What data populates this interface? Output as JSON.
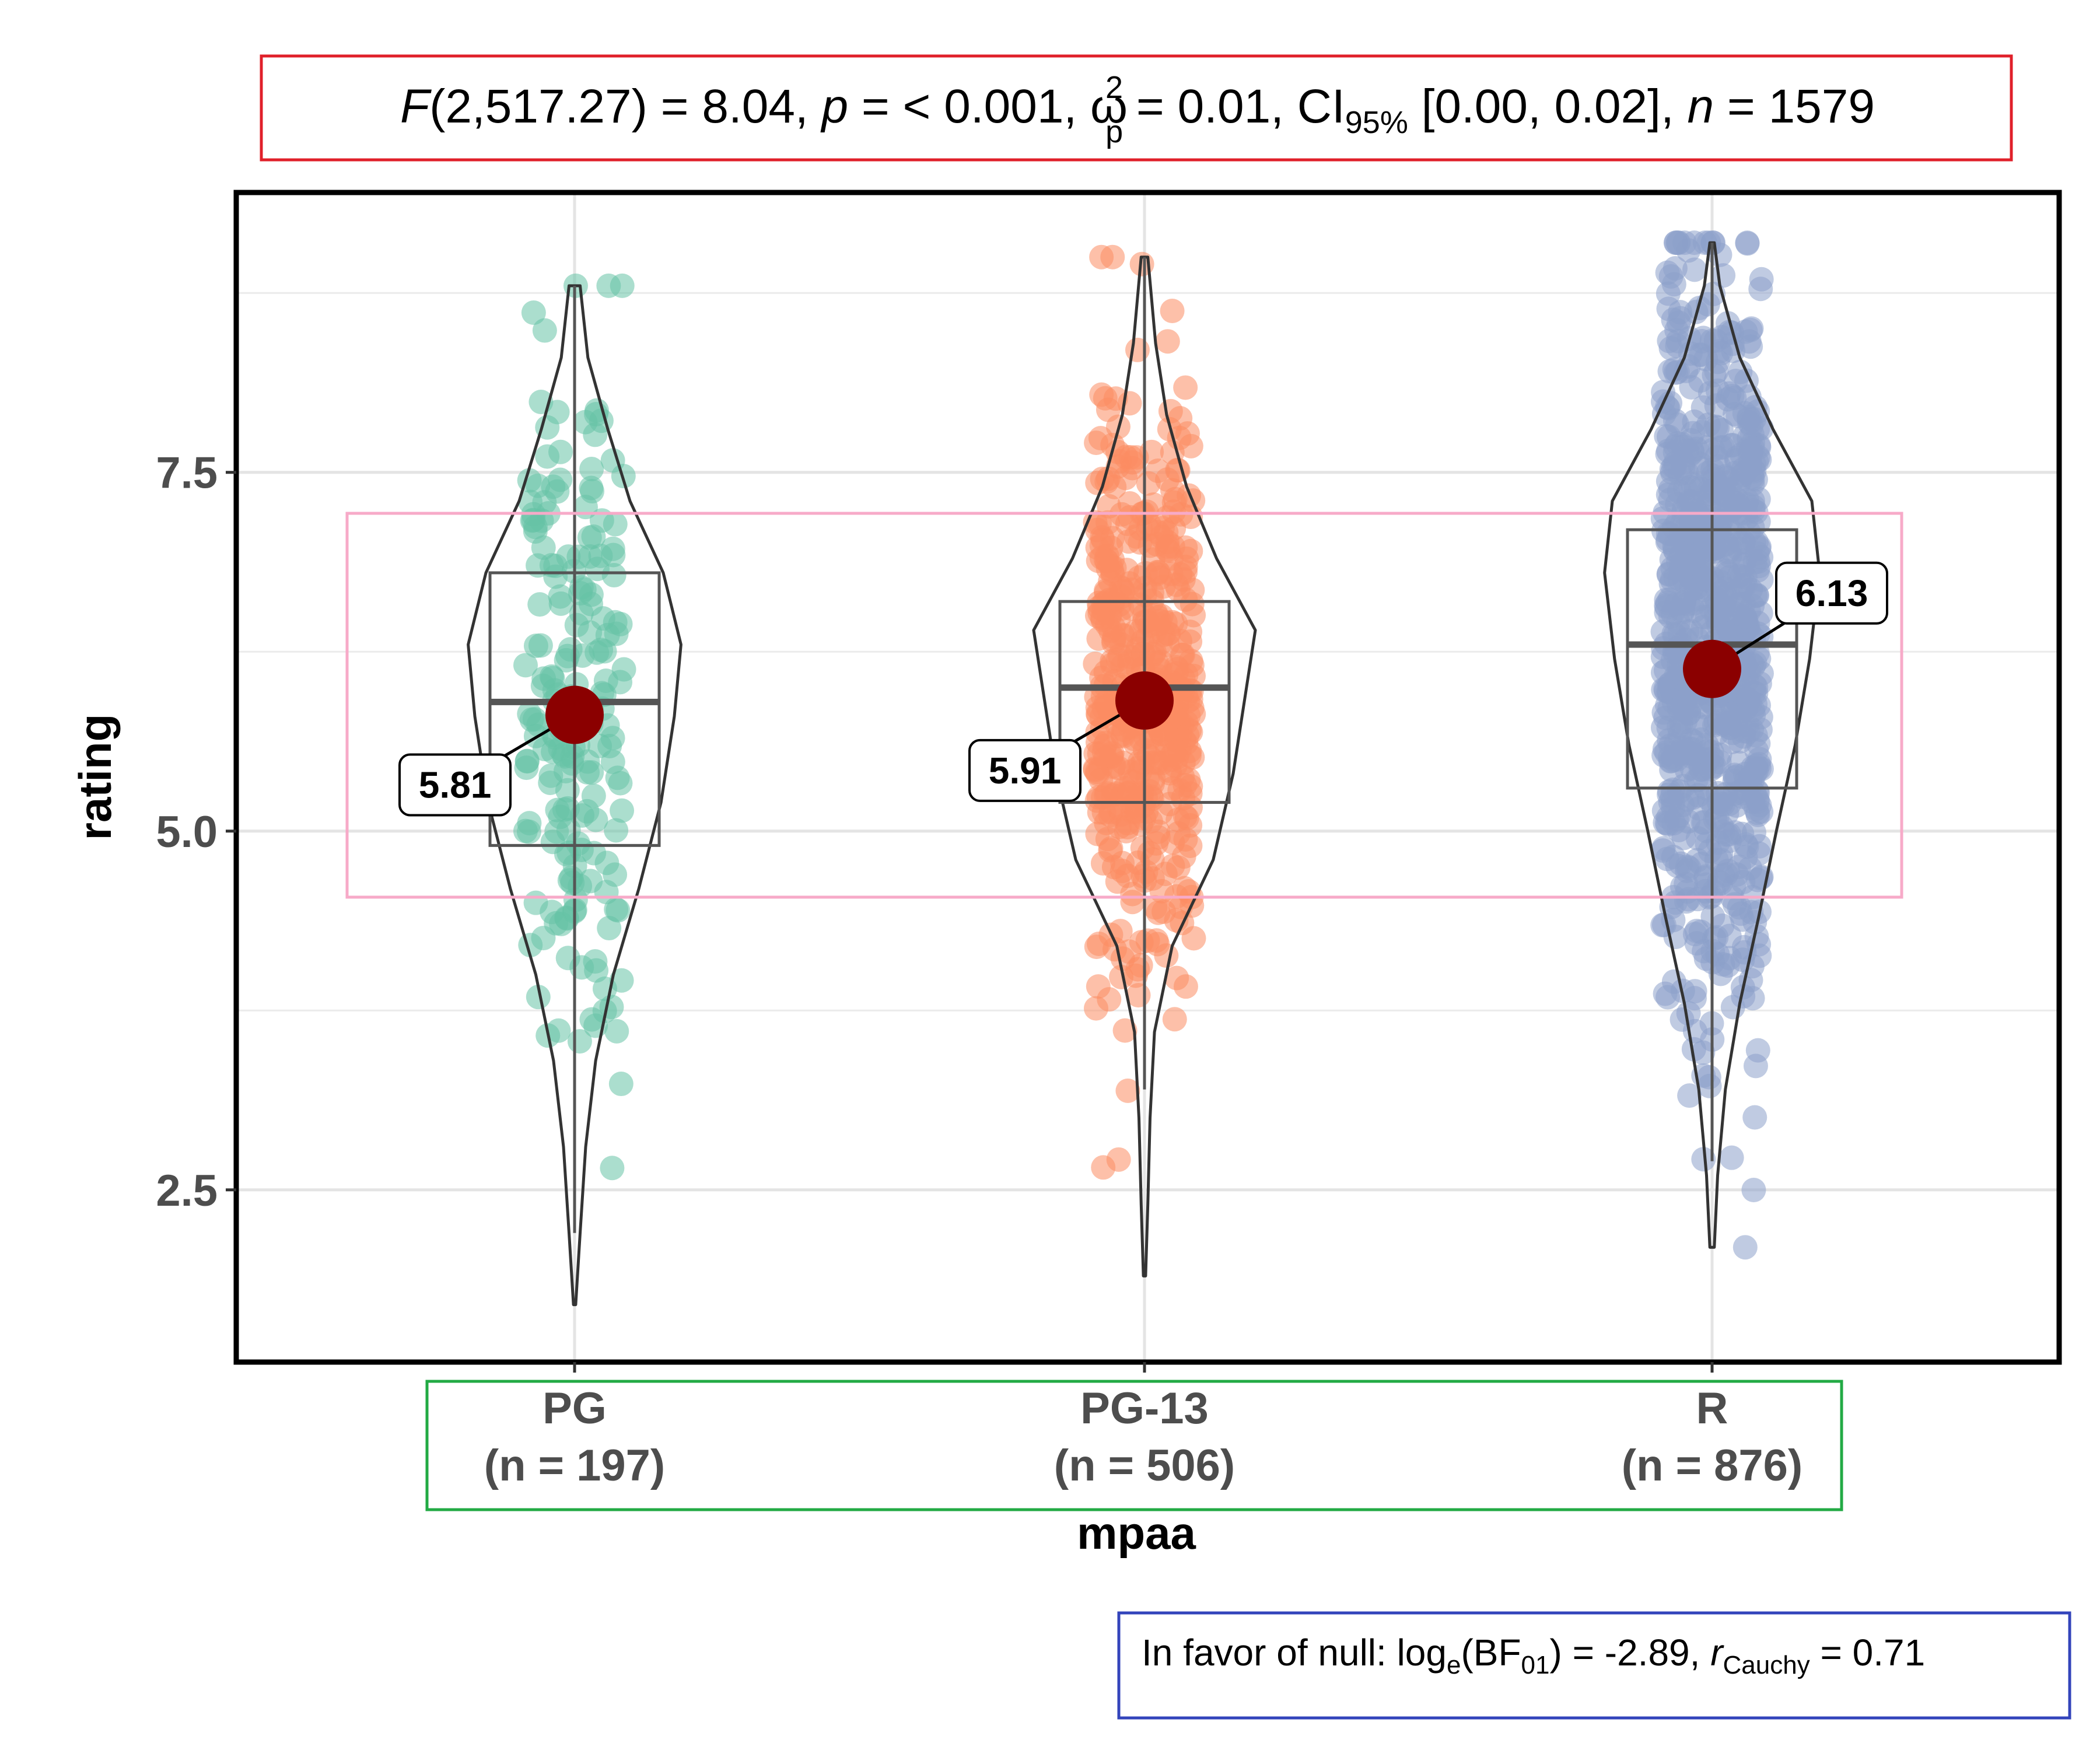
{
  "chart_data": {
    "type": "violin-box-scatter",
    "subtitle": {
      "f_letter": "F",
      "f_args": "(2,517.27) = 8.04, ",
      "p_letter": "p",
      "p_text": " = < 0.001, ",
      "omega": "ω",
      "omega_sup": "2",
      "omega_sub": "p",
      "omega_text": " = 0.01, CI",
      "ci_sub": "95%",
      "ci_text": " [0.00, 0.02], ",
      "n_letter": "n",
      "n_text": " = 1579"
    },
    "caption": {
      "prefix": "In favor of null: log",
      "log_sub": "e",
      "bf_open": "(BF",
      "bf_sub": "01",
      "bf_close": ") = -2.89, ",
      "r_letter": "r",
      "r_sub": "Cauchy",
      "r_text": " = 0.71"
    },
    "xlabel": "mpaa",
    "ylabel": "rating",
    "ylim": [
      1.3,
      9.45
    ],
    "yticks": [
      {
        "value": 2.5,
        "label": "2.5"
      },
      {
        "value": 5.0,
        "label": "5.0"
      },
      {
        "value": 7.5,
        "label": "7.5"
      }
    ],
    "minor_yticks": [
      3.75,
      6.25,
      8.75
    ],
    "grid": true,
    "groups": [
      {
        "name": "PG",
        "n_label": "(n = 197)",
        "color": "#66c2a5",
        "n_points": 197,
        "min": 1.7,
        "max": 8.8,
        "q1": 4.9,
        "median": 5.9,
        "q3": 6.8,
        "whisker_low": 2.2,
        "whisker_high": 8.8,
        "mean": 5.81,
        "mean_label": "5.81",
        "density": [
          [
            1.7,
            0.01
          ],
          [
            2.2,
            0.05
          ],
          [
            2.8,
            0.1
          ],
          [
            3.4,
            0.19
          ],
          [
            4.0,
            0.35
          ],
          [
            4.6,
            0.58
          ],
          [
            5.2,
            0.78
          ],
          [
            5.8,
            0.9
          ],
          [
            6.3,
            0.96
          ],
          [
            6.8,
            0.8
          ],
          [
            7.3,
            0.5
          ],
          [
            7.8,
            0.3
          ],
          [
            8.3,
            0.12
          ],
          [
            8.8,
            0.05
          ]
        ]
      },
      {
        "name": "PG-13",
        "n_label": "(n = 506)",
        "color": "#fc8d62",
        "n_points": 506,
        "min": 1.9,
        "max": 9.0,
        "q1": 5.2,
        "median": 6.0,
        "q3": 6.6,
        "whisker_low": 3.2,
        "whisker_high": 9.0,
        "mean": 5.91,
        "mean_label": "5.91",
        "density": [
          [
            1.9,
            0.01
          ],
          [
            2.4,
            0.03
          ],
          [
            3.0,
            0.05
          ],
          [
            3.6,
            0.09
          ],
          [
            4.2,
            0.25
          ],
          [
            4.8,
            0.62
          ],
          [
            5.4,
            0.8
          ],
          [
            6.0,
            0.92
          ],
          [
            6.4,
            1.0
          ],
          [
            6.9,
            0.65
          ],
          [
            7.4,
            0.38
          ],
          [
            7.9,
            0.2
          ],
          [
            8.4,
            0.1
          ],
          [
            9.0,
            0.03
          ]
        ]
      },
      {
        "name": "R",
        "n_label": "(n = 876)",
        "color": "#8da0cb",
        "n_points": 876,
        "min": 2.1,
        "max": 9.1,
        "q1": 5.3,
        "median": 6.3,
        "q3": 7.1,
        "whisker_low": 2.7,
        "whisker_high": 9.1,
        "mean": 6.13,
        "mean_label": "6.13",
        "density": [
          [
            2.1,
            0.02
          ],
          [
            2.6,
            0.05
          ],
          [
            3.2,
            0.12
          ],
          [
            3.8,
            0.25
          ],
          [
            4.4,
            0.42
          ],
          [
            5.0,
            0.58
          ],
          [
            5.6,
            0.75
          ],
          [
            6.2,
            0.88
          ],
          [
            6.8,
            0.97
          ],
          [
            7.3,
            0.9
          ],
          [
            7.8,
            0.55
          ],
          [
            8.3,
            0.25
          ],
          [
            8.8,
            0.07
          ],
          [
            9.1,
            0.02
          ]
        ]
      }
    ]
  }
}
